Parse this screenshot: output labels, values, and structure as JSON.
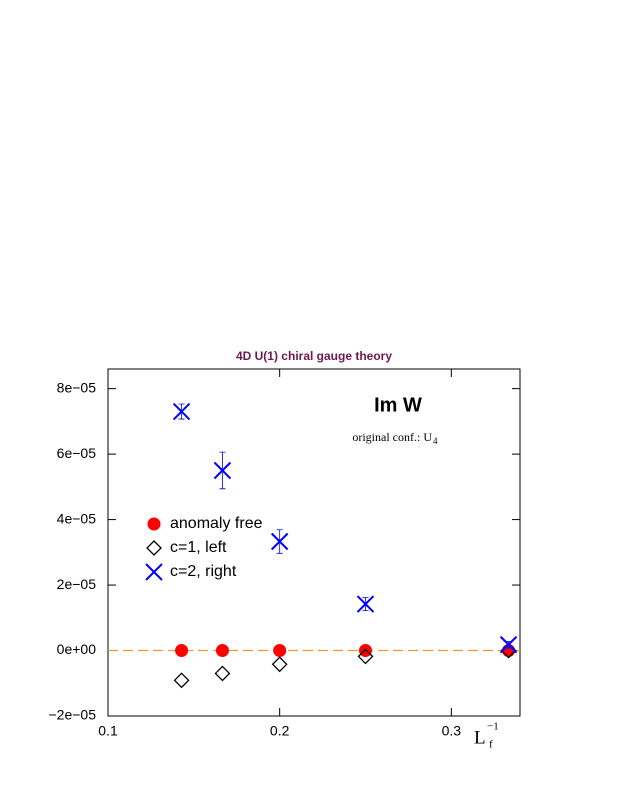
{
  "chart_data": {
    "type": "scatter",
    "title": "4D U(1) chiral gauge theory",
    "title_color": "#6b1a4f",
    "annotations": [
      "Im W",
      "original conf.: U",
      "4"
    ],
    "x_label": [
      "L",
      "−1",
      "f"
    ],
    "x": [
      0.142857,
      0.166667,
      0.2,
      0.25,
      0.333333
    ],
    "series": [
      {
        "name": "anomaly free",
        "color": "#ff0000",
        "marker": "circle",
        "values": [
          0,
          0,
          0,
          0,
          0
        ]
      },
      {
        "name": "c=1, left",
        "color": "#000000",
        "marker": "diamond",
        "values": [
          -9.1e-06,
          -7e-06,
          -4.2e-06,
          -1.8e-06,
          0
        ]
      },
      {
        "name": "c=2, right",
        "color": "#0000ff",
        "marker": "cross",
        "values": [
          7.3e-05,
          5.5e-05,
          3.33e-05,
          1.42e-05,
          1.8e-06
        ],
        "errors": [
          2.3e-06,
          5.6e-06,
          3.6e-06,
          2e-06,
          1e-06
        ]
      }
    ],
    "xlim": [
      0.1,
      0.34
    ],
    "ylim": [
      -2e-05,
      8.6e-05
    ],
    "xticks": [
      0.1,
      0.2,
      0.3
    ],
    "yticks": [
      {
        "value": -2e-05,
        "label": "−2e−05"
      },
      {
        "value": 0,
        "label": "0e+00"
      },
      {
        "value": 2e-05,
        "label": "2e−05"
      },
      {
        "value": 4e-05,
        "label": "4e−05"
      },
      {
        "value": 6e-05,
        "label": "6e−05"
      },
      {
        "value": 8e-05,
        "label": "8e−05"
      }
    ],
    "hline": {
      "value": 0,
      "color": "#e0a030"
    },
    "legend": "center-left"
  }
}
